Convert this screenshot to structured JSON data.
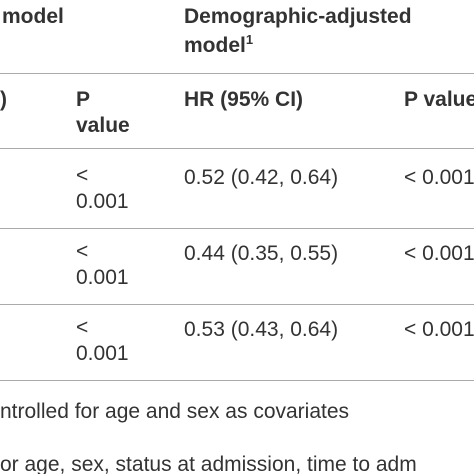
{
  "header": {
    "col1": "model",
    "col3_line1": "Demographic-adjusted",
    "col3_line2": "model",
    "col3_sup": "1"
  },
  "subheader": {
    "col0": ")",
    "col1": "P value",
    "col2": "HR (95% CI)",
    "col3": "P value"
  },
  "table": {
    "rows": [
      [
        "< 0.001",
        "0.52 (0.42, 0.64)",
        "< 0.001"
      ],
      [
        "< 0.001",
        "0.44 (0.35, 0.55)",
        "< 0.001"
      ],
      [
        "< 0.001",
        "0.53 (0.43, 0.64)",
        "< 0.001"
      ]
    ]
  },
  "footnotes": [
    "ntrolled for age and sex as covariates",
    "or age, sex, status at admission, time to adm"
  ]
}
